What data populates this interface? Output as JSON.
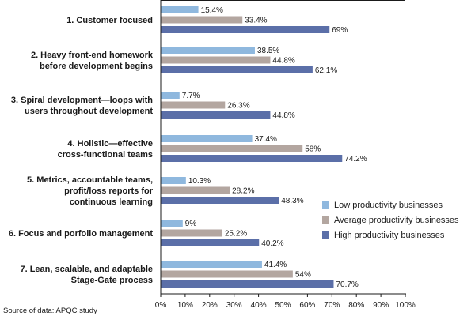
{
  "chart_data": {
    "type": "bar",
    "orientation": "horizontal",
    "categories": [
      [
        "1. Customer focused"
      ],
      [
        "2. Heavy front-end homework",
        "before development begins"
      ],
      [
        "3. Spiral development—loops with",
        "users throughout development"
      ],
      [
        "4. Holistic—effective",
        "cross-functional teams"
      ],
      [
        "5. Metrics, accountable teams,",
        "profit/loss reports for",
        "continuous learning"
      ],
      [
        "6. Focus and porfolio management"
      ],
      [
        "7. Lean, scalable, and adaptable",
        "Stage-Gate process"
      ]
    ],
    "series": [
      {
        "name": "Low productivity businesses",
        "color": "#8fb8de",
        "values": [
          15.4,
          38.5,
          7.7,
          37.4,
          10.3,
          9,
          41.4
        ],
        "labels": [
          "15.4%",
          "38.5%",
          "7.7%",
          "37.4%",
          "10.3%",
          "9%",
          "41.4%"
        ]
      },
      {
        "name": "Average productivity businesses",
        "color": "#b3a6a0",
        "values": [
          33.4,
          44.8,
          26.3,
          58,
          28.2,
          25.2,
          54
        ],
        "labels": [
          "33.4%",
          "44.8%",
          "26.3%",
          "58%",
          "28.2%",
          "25.2%",
          "54%"
        ]
      },
      {
        "name": "High productivity businesses",
        "color": "#5b6fa8",
        "values": [
          69,
          62.1,
          44.8,
          74.2,
          48.3,
          40.2,
          70.7
        ],
        "labels": [
          "69%",
          "62.1%",
          "44.8%",
          "74.2%",
          "48.3%",
          "40.2%",
          "70.7%"
        ]
      }
    ],
    "xlim": [
      0,
      100
    ],
    "xticks": [
      "0%",
      "10%",
      "20%",
      "30%",
      "40%",
      "50%",
      "60%",
      "70%",
      "80%",
      "90%",
      "100%"
    ],
    "legend_position": "right",
    "grid": false
  },
  "source_note": "Source of data: APQC study"
}
